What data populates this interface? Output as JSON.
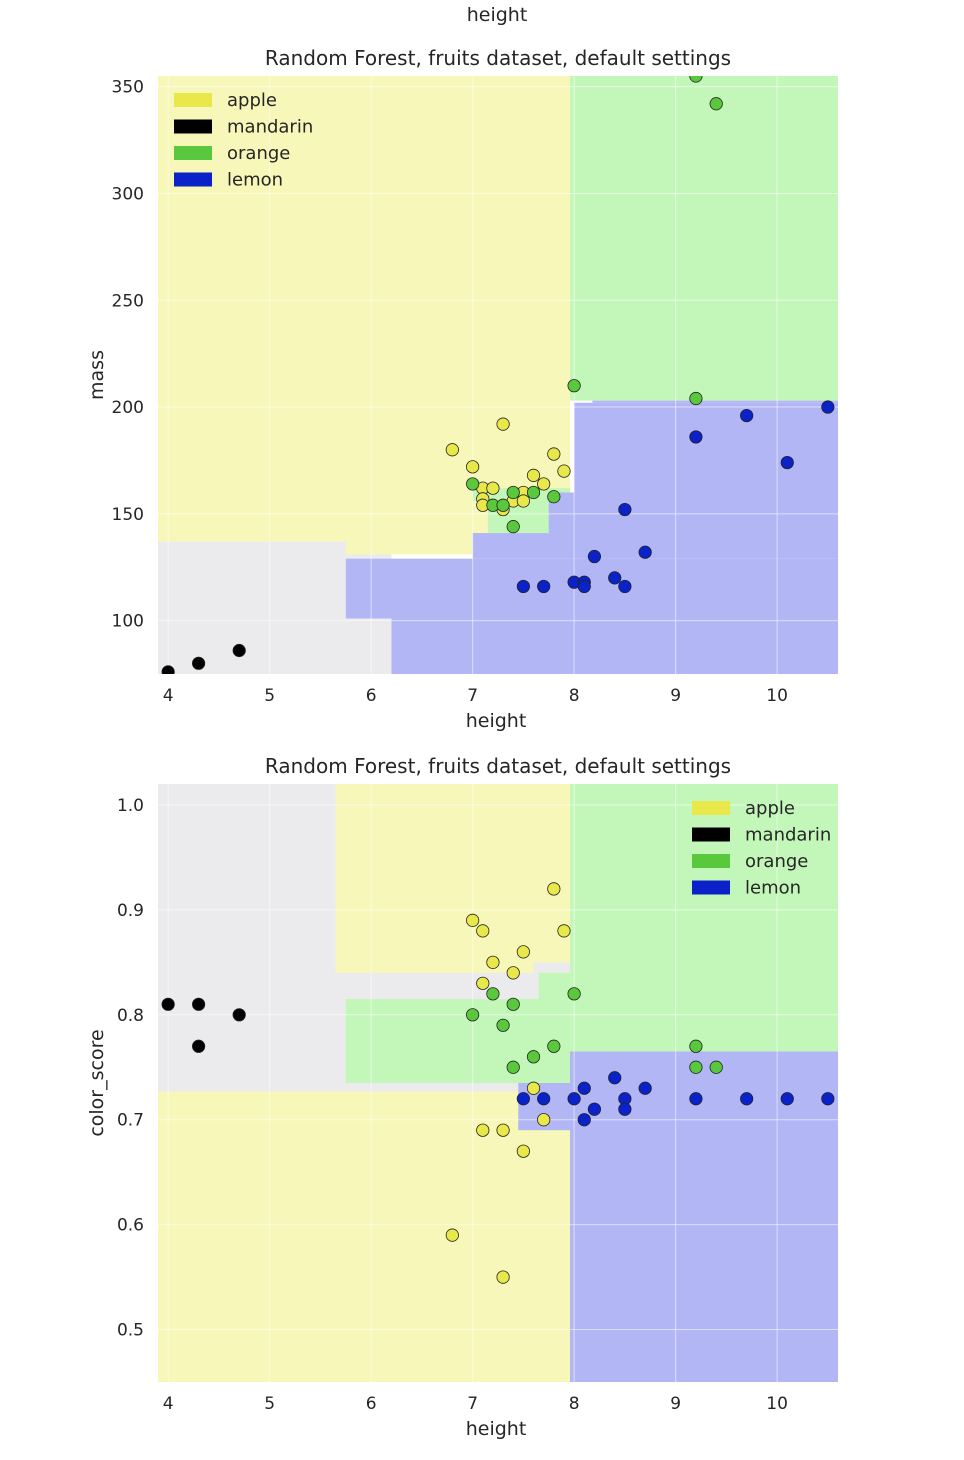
{
  "header_fragment": {
    "text": "height"
  },
  "palette": {
    "apple": "#e8e84a",
    "mandarin": "#000000",
    "orange": "#5ac83c",
    "lemon": "#0a22c8",
    "region_apple": "#f7f7b9",
    "region_mandarin": "#ebebed",
    "region_orange": "#c3f7ba",
    "region_lemon": "#b2b6f5"
  },
  "chart_data": [
    {
      "type": "scatter",
      "title": "Random Forest, fruits dataset, default settings",
      "xlabel": "height",
      "ylabel": "mass",
      "xlim": [
        3.9,
        10.6
      ],
      "ylim": [
        75,
        355
      ],
      "xticks": [
        "4",
        "5",
        "6",
        "7",
        "8",
        "9",
        "10"
      ],
      "yticks": [
        "100",
        "150",
        "200",
        "250",
        "300",
        "350"
      ],
      "legend": [
        "apple",
        "mandarin",
        "orange",
        "lemon"
      ],
      "legend_position": "upper-left",
      "grid": true,
      "regions": [
        {
          "cls": "mandarin",
          "rects": [
            [
              3.9,
              75,
              6.2,
              137
            ]
          ]
        },
        {
          "cls": "apple",
          "rects": [
            [
              3.9,
              137,
              7.96,
              355
            ],
            [
              5.75,
              131,
              7.0,
              137
            ],
            [
              6.5,
              140,
              7.2,
              175
            ]
          ]
        },
        {
          "cls": "orange",
          "rects": [
            [
              7.96,
              203,
              10.6,
              355
            ],
            [
              7.15,
              141,
              7.8,
              162
            ],
            [
              7.0,
              156,
              7.96,
              162
            ]
          ]
        },
        {
          "cls": "lemon",
          "rects": [
            [
              5.75,
              101,
              10.6,
              129
            ],
            [
              6.2,
              75,
              10.6,
              101
            ],
            [
              7.0,
              129,
              10.6,
              141
            ],
            [
              7.75,
              141,
              10.6,
              160
            ],
            [
              8.0,
              160,
              10.6,
              202
            ],
            [
              8.18,
              202,
              10.6,
              203
            ]
          ]
        }
      ],
      "series": [
        {
          "name": "apple",
          "points": [
            [
              6.8,
              180
            ],
            [
              7.0,
              172
            ],
            [
              7.1,
              162
            ],
            [
              7.1,
              157
            ],
            [
              7.1,
              154
            ],
            [
              7.2,
              162
            ],
            [
              7.3,
              192
            ],
            [
              7.3,
              152
            ],
            [
              7.4,
              156
            ],
            [
              7.5,
              160
            ],
            [
              7.5,
              156
            ],
            [
              7.6,
              168
            ],
            [
              7.7,
              164
            ],
            [
              7.8,
              178
            ],
            [
              7.9,
              170
            ]
          ]
        },
        {
          "name": "mandarin",
          "points": [
            [
              4.0,
              76
            ],
            [
              4.3,
              80
            ],
            [
              4.7,
              86
            ]
          ]
        },
        {
          "name": "orange",
          "points": [
            [
              7.0,
              164
            ],
            [
              7.2,
              154
            ],
            [
              7.3,
              154
            ],
            [
              7.4,
              160
            ],
            [
              7.4,
              144
            ],
            [
              7.6,
              160
            ],
            [
              7.8,
              158
            ],
            [
              8.0,
              210
            ],
            [
              9.2,
              204
            ],
            [
              9.2,
              355
            ],
            [
              9.4,
              342
            ]
          ]
        },
        {
          "name": "lemon",
          "points": [
            [
              7.5,
              116
            ],
            [
              7.7,
              116
            ],
            [
              8.0,
              118
            ],
            [
              8.1,
              118
            ],
            [
              8.1,
              116
            ],
            [
              8.2,
              130
            ],
            [
              8.4,
              120
            ],
            [
              8.5,
              116
            ],
            [
              8.5,
              152
            ],
            [
              8.7,
              132
            ],
            [
              9.2,
              186
            ],
            [
              9.7,
              196
            ],
            [
              10.1,
              174
            ],
            [
              10.5,
              200
            ]
          ]
        }
      ]
    },
    {
      "type": "scatter",
      "title": "Random Forest, fruits dataset, default settings",
      "xlabel": "height",
      "ylabel": "color_score",
      "xlim": [
        3.9,
        10.6
      ],
      "ylim": [
        0.45,
        1.02
      ],
      "xticks": [
        "4",
        "5",
        "6",
        "7",
        "8",
        "9",
        "10"
      ],
      "yticks": [
        "0.5",
        "0.6",
        "0.7",
        "0.8",
        "0.9",
        "1.0"
      ],
      "legend": [
        "apple",
        "mandarin",
        "orange",
        "lemon"
      ],
      "legend_position": "upper-right",
      "grid": true,
      "regions": [
        {
          "cls": "apple",
          "rects": [
            [
              3.9,
              0.45,
              7.96,
              1.02
            ]
          ]
        },
        {
          "cls": "mandarin",
          "rects": [
            [
              3.9,
              0.727,
              5.65,
              1.02
            ],
            [
              5.65,
              0.727,
              5.75,
              0.84
            ],
            [
              5.75,
              0.727,
              7.96,
              0.735
            ],
            [
              5.75,
              0.815,
              7.96,
              0.84
            ],
            [
              7.6,
              0.84,
              7.96,
              0.85
            ]
          ]
        },
        {
          "cls": "orange",
          "rects": [
            [
              7.96,
              0.765,
              10.6,
              1.02
            ],
            [
              5.75,
              0.735,
              7.96,
              0.815
            ],
            [
              7.65,
              0.815,
              7.96,
              0.84
            ]
          ]
        },
        {
          "cls": "lemon",
          "rects": [
            [
              7.96,
              0.45,
              10.6,
              0.765
            ],
            [
              7.45,
              0.69,
              7.96,
              0.735
            ],
            [
              7.96,
              0.45,
              10.6,
              0.765
            ]
          ]
        }
      ],
      "series": [
        {
          "name": "apple",
          "points": [
            [
              6.8,
              0.59
            ],
            [
              7.0,
              0.89
            ],
            [
              7.1,
              0.88
            ],
            [
              7.1,
              0.83
            ],
            [
              7.1,
              0.69
            ],
            [
              7.2,
              0.85
            ],
            [
              7.3,
              0.69
            ],
            [
              7.3,
              0.55
            ],
            [
              7.4,
              0.84
            ],
            [
              7.5,
              0.86
            ],
            [
              7.5,
              0.67
            ],
            [
              7.6,
              0.73
            ],
            [
              7.7,
              0.7
            ],
            [
              7.8,
              0.92
            ],
            [
              7.9,
              0.88
            ]
          ]
        },
        {
          "name": "mandarin",
          "points": [
            [
              4.0,
              0.81
            ],
            [
              4.3,
              0.81
            ],
            [
              4.3,
              0.77
            ],
            [
              4.7,
              0.8
            ]
          ]
        },
        {
          "name": "orange",
          "points": [
            [
              7.0,
              0.8
            ],
            [
              7.2,
              0.82
            ],
            [
              7.3,
              0.79
            ],
            [
              7.4,
              0.81
            ],
            [
              7.4,
              0.75
            ],
            [
              7.6,
              0.76
            ],
            [
              7.8,
              0.77
            ],
            [
              8.0,
              0.82
            ],
            [
              9.2,
              0.77
            ],
            [
              9.2,
              0.75
            ],
            [
              9.4,
              0.75
            ]
          ]
        },
        {
          "name": "lemon",
          "points": [
            [
              7.5,
              0.72
            ],
            [
              7.7,
              0.72
            ],
            [
              8.0,
              0.72
            ],
            [
              8.1,
              0.73
            ],
            [
              8.1,
              0.7
            ],
            [
              8.2,
              0.71
            ],
            [
              8.4,
              0.74
            ],
            [
              8.5,
              0.72
            ],
            [
              8.5,
              0.71
            ],
            [
              8.7,
              0.73
            ],
            [
              9.2,
              0.72
            ],
            [
              9.7,
              0.72
            ],
            [
              10.1,
              0.72
            ],
            [
              10.5,
              0.72
            ]
          ]
        }
      ]
    }
  ]
}
